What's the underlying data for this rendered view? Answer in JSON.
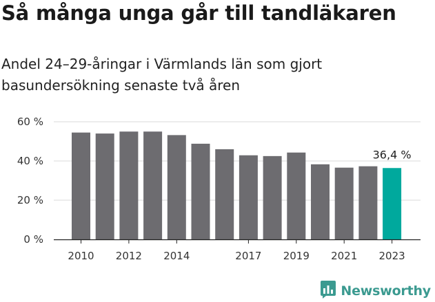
{
  "header": {
    "title": "Så många unga går till tandläkaren",
    "subtitle": "Andel 24–29-åringar i Värmlands län som gjort basundersökning senaste två åren"
  },
  "brand": {
    "name": "Newsworthy",
    "icon": "newsworthy-logo-icon",
    "color": "#3b9a90"
  },
  "colors": {
    "bar": "#6d6c70",
    "highlight": "#00a99d",
    "grid": "#d9d9d9",
    "axis": "#222222"
  },
  "chart_data": {
    "type": "bar",
    "title": "Så många unga går till tandläkaren",
    "subtitle": "Andel 24–29-åringar i Värmlands län som gjort basundersökning senaste två åren",
    "xlabel": "",
    "ylabel": "",
    "ylim": [
      0,
      60
    ],
    "yticks": [
      0,
      20,
      40,
      60
    ],
    "ytick_labels": [
      "0 %",
      "20 %",
      "40 %",
      "60 %"
    ],
    "grid": true,
    "categories": [
      "2010",
      "2011",
      "2012",
      "2013",
      "2014",
      "2015",
      "2016",
      "2017",
      "2018",
      "2019",
      "2020",
      "2021",
      "2022",
      "2023"
    ],
    "xtick_labels": [
      "2010",
      "",
      "2012",
      "",
      "2014",
      "",
      "",
      "2017",
      "",
      "2019",
      "",
      "2021",
      "",
      "2023"
    ],
    "values": [
      54.5,
      54.0,
      55.0,
      55.0,
      53.2,
      48.8,
      46.0,
      42.9,
      42.5,
      44.3,
      38.3,
      36.6,
      37.3,
      36.4
    ],
    "highlight_index": 13,
    "annotations": [
      {
        "category": "2023",
        "text": "36,4 %"
      }
    ]
  }
}
